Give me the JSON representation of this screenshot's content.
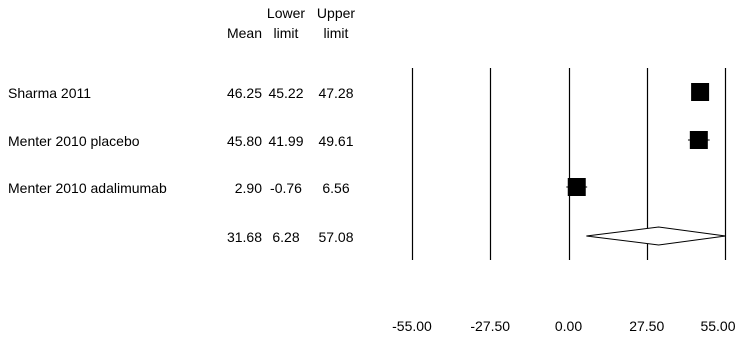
{
  "chart_data": {
    "type": "forest",
    "columns": {
      "mean": [
        "",
        "Mean"
      ],
      "lower": [
        "Lower",
        "limit"
      ],
      "upper": [
        "Upper",
        "limit"
      ]
    },
    "studies": [
      {
        "label": "Sharma 2011",
        "mean": 46.25,
        "lower": 45.22,
        "upper": 47.28,
        "mean_text": "46.25",
        "lower_text": "45.22",
        "upper_text": "47.28"
      },
      {
        "label": "Menter 2010 placebo",
        "mean": 45.8,
        "lower": 41.99,
        "upper": 49.61,
        "mean_text": "45.80",
        "lower_text": "41.99",
        "upper_text": "49.61"
      },
      {
        "label": "Menter 2010 adalimumab",
        "mean": 2.9,
        "lower": -0.76,
        "upper": 6.56,
        "mean_text": "2.90",
        "lower_text": "-0.76",
        "upper_text": "6.56"
      }
    ],
    "summary": {
      "label": "",
      "mean": 31.68,
      "lower": 6.28,
      "upper": 57.08,
      "mean_text": "31.68",
      "lower_text": "6.28",
      "upper_text": "57.08"
    },
    "x_ticks": [
      -55,
      -27.5,
      0,
      27.5,
      55
    ],
    "x_tick_labels": [
      "-55.00",
      "-27.50",
      "0.00",
      "27.50",
      "55.00"
    ],
    "xlim": [
      -55,
      55
    ]
  }
}
